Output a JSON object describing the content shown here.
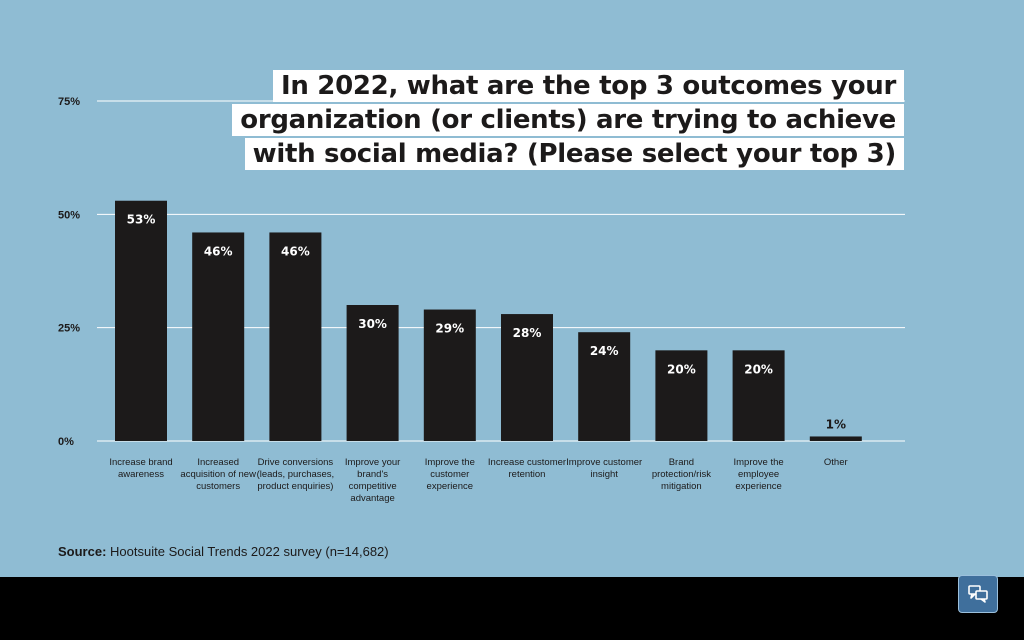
{
  "chart_title_lines": [
    "In 2022, what are the top 3 outcomes your",
    "organization (or clients) are trying to achieve",
    "with social media? (Please select your top 3)"
  ],
  "source_prefix": "Source:",
  "source_text": "Hootsuite Social Trends 2022 survey (n=14,682)",
  "colors": {
    "background": "#8fbcd3",
    "bar": "#1c1a1a",
    "gridline": "#ffffff",
    "title_box": "#ffffff"
  },
  "chat_button_icon": "chat-bubbles-icon",
  "chart_data": {
    "type": "bar",
    "title": "In 2022, what are the top 3 outcomes your organization (or clients) are trying to achieve with social media? (Please select your top 3)",
    "categories": [
      "Increase brand awareness",
      "Increased acquisition of new customers",
      "Drive conversions (leads, purchases, product enquiries)",
      "Improve your brand's competitive advantage",
      "Improve the customer experience",
      "Increase customer retention",
      "Improve customer insight",
      "Brand protection/risk mitigation",
      "Improve the employee experience",
      "Other"
    ],
    "values": [
      53,
      46,
      46,
      30,
      29,
      28,
      24,
      20,
      20,
      1
    ],
    "data_labels": [
      "53%",
      "46%",
      "46%",
      "30%",
      "29%",
      "28%",
      "24%",
      "20%",
      "20%",
      "1%"
    ],
    "ylim": [
      0,
      75
    ],
    "y_ticks": [
      0,
      25,
      50,
      75
    ],
    "y_tick_labels": [
      "0%",
      "25%",
      "50%",
      "75%"
    ],
    "grid": true,
    "legend": "none"
  }
}
